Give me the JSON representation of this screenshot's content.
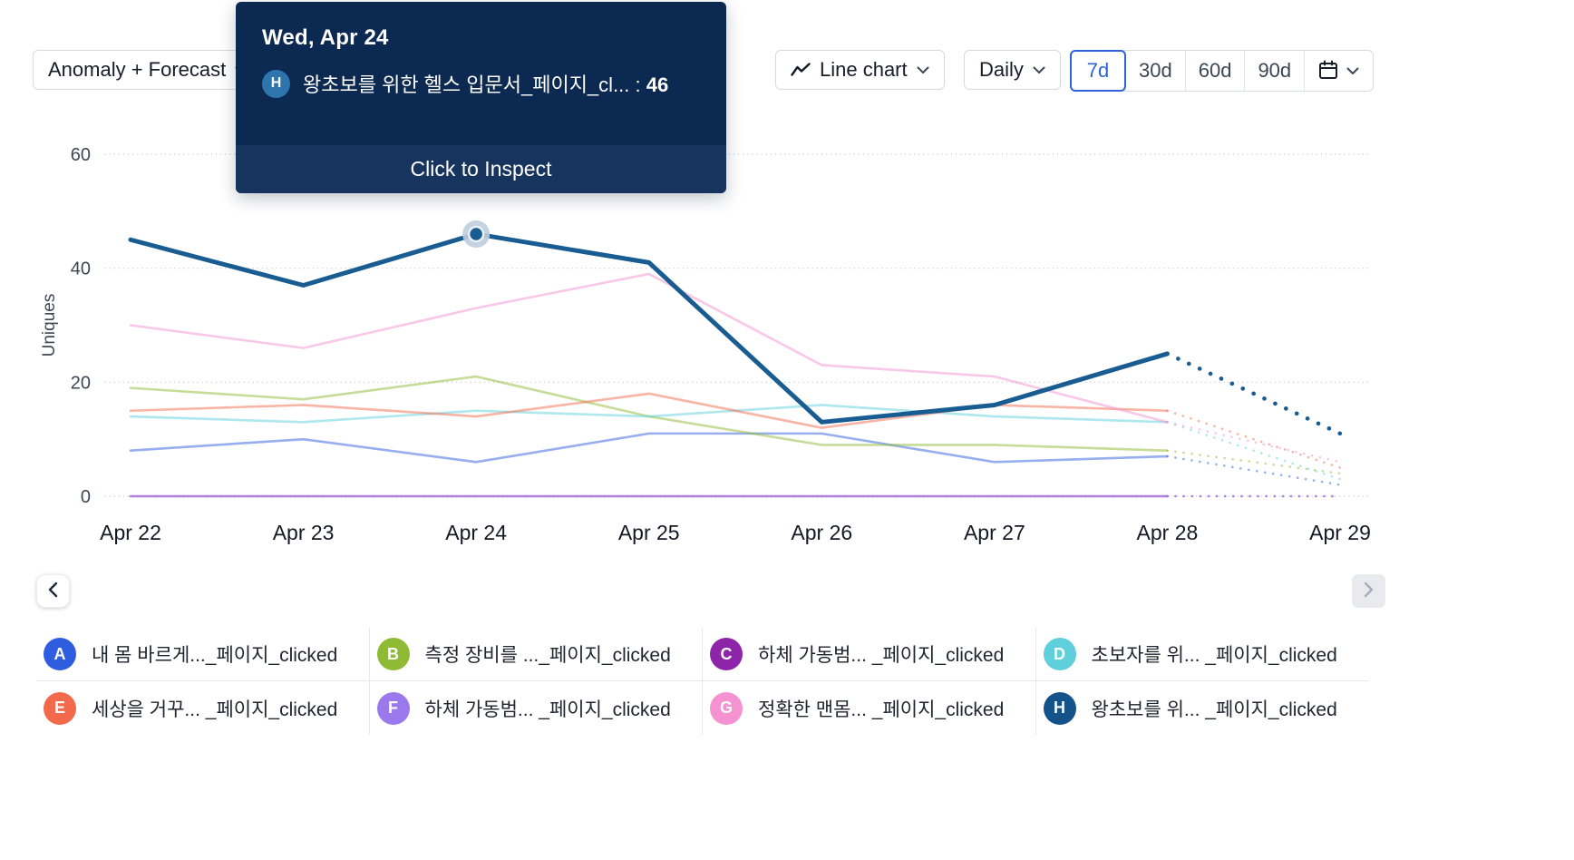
{
  "toolbar": {
    "metric_selector": {
      "label": "Anomaly + Forecast"
    },
    "chart_type": {
      "label": "Line chart"
    },
    "granularity": {
      "label": "Daily"
    },
    "ranges": [
      {
        "label": "7d",
        "selected": true
      },
      {
        "label": "30d",
        "selected": false
      },
      {
        "label": "60d",
        "selected": false
      },
      {
        "label": "90d",
        "selected": false
      }
    ]
  },
  "tooltip": {
    "title": "Wed, Apr 24",
    "badge_letter": "H",
    "badge_color": "#2e74ad",
    "series_label": "왕초보를 위한 헬스 입문서_페이지_cl...",
    "separator": " : ",
    "value": "46",
    "footer": "Click to Inspect"
  },
  "chart_data": {
    "type": "line",
    "x": [
      "Apr 22",
      "Apr 23",
      "Apr 24",
      "Apr 25",
      "Apr 26",
      "Apr 27",
      "Apr 28",
      "Apr 29"
    ],
    "ylabel": "Uniques",
    "ylim": [
      0,
      60
    ],
    "yticks": [
      0,
      20,
      40,
      60
    ],
    "forecast_start_index": 6,
    "highlight": {
      "series_key": "H",
      "index": 2,
      "value": 46,
      "halo_color": "#bfcddc"
    },
    "series": [
      {
        "key": "A",
        "label": "내 몸 바르게..._페이지_clicked",
        "color": "#2f5de0",
        "muted": true,
        "values": [
          8,
          10,
          6,
          11,
          11,
          6,
          7,
          2
        ]
      },
      {
        "key": "B",
        "label": "측정 장비를 ..._페이지_clicked",
        "color": "#8fba33",
        "muted": true,
        "values": [
          19,
          17,
          21,
          14,
          9,
          9,
          8,
          4
        ]
      },
      {
        "key": "C",
        "label": "하체 가동범... _페이지_clicked",
        "color": "#8e24aa",
        "muted": true,
        "values": [
          0,
          0,
          0,
          0,
          0,
          0,
          0,
          0
        ]
      },
      {
        "key": "D",
        "label": "초보자를 위... _페이지_clicked",
        "color": "#5ecfdb",
        "muted": true,
        "values": [
          14,
          13,
          15,
          14,
          16,
          14,
          13,
          3
        ]
      },
      {
        "key": "E",
        "label": "세상을 거꾸... _페이지_clicked",
        "color": "#f26a4b",
        "muted": true,
        "values": [
          15,
          16,
          14,
          18,
          12,
          16,
          15,
          5
        ]
      },
      {
        "key": "F",
        "label": "하체 가동범... _페이지_clicked",
        "color": "#9b79ec",
        "muted": true,
        "values": [
          0,
          0,
          0,
          0,
          0,
          0,
          0,
          0
        ]
      },
      {
        "key": "G",
        "label": "정확한 맨몸... _페이지_clicked",
        "color": "#f492d2",
        "muted": true,
        "values": [
          30,
          26,
          33,
          39,
          23,
          21,
          13,
          6
        ]
      },
      {
        "key": "H",
        "label": "왕초보를 위... _페이지_clicked",
        "color": "#185c92",
        "muted": false,
        "values": [
          45,
          37,
          46,
          41,
          13,
          16,
          25,
          11
        ]
      }
    ]
  },
  "legend": {
    "items": [
      {
        "letter": "A",
        "color": "#2f5de0",
        "label": "내 몸 바르게..._페이지_clicked"
      },
      {
        "letter": "B",
        "color": "#8fba33",
        "label": "측정 장비를 ..._페이지_clicked"
      },
      {
        "letter": "C",
        "color": "#8e24aa",
        "label": "하체 가동범... _페이지_clicked"
      },
      {
        "letter": "D",
        "color": "#5ecfdb",
        "label": "초보자를 위... _페이지_clicked"
      },
      {
        "letter": "E",
        "color": "#f26a4b",
        "label": "세상을 거꾸... _페이지_clicked"
      },
      {
        "letter": "F",
        "color": "#9b79ec",
        "label": "하체 가동범... _페이지_clicked"
      },
      {
        "letter": "G",
        "color": "#f492d2",
        "label": "정확한 맨몸... _페이지_clicked"
      },
      {
        "letter": "H",
        "color": "#14538a",
        "label": "왕초보를 위... _페이지_clicked"
      }
    ]
  }
}
